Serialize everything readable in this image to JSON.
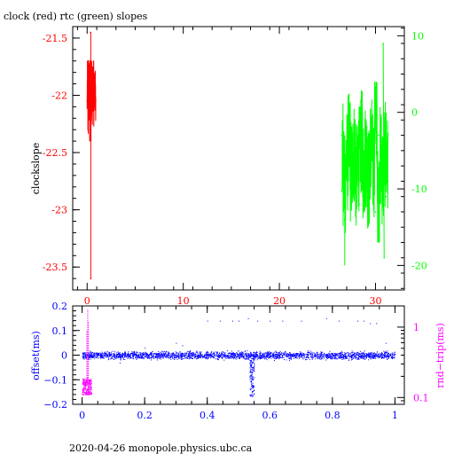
{
  "title": "clock (red) rtc (green) slopes",
  "footer": "2020-04-26  monopole.physics.ubc.ca",
  "colors": {
    "axes": "#000000",
    "clock": "#ff0000",
    "rtc": "#00ff00",
    "offset": "#0000ff",
    "rndtrip": "#ff00ff"
  },
  "chart_data": [
    {
      "type": "line",
      "title": "clock (red) rtc (green) slopes",
      "ylabel": "clockslope",
      "xlim": [
        -1.5,
        33
      ],
      "x_ticks": [
        0,
        10,
        20,
        30
      ],
      "x_tick_labels": [
        "0",
        "10",
        "20",
        "30"
      ],
      "ylim": [
        -23.7,
        -21.4
      ],
      "y_ticks": [
        -21.5,
        -22,
        -22.5,
        -23,
        -23.5
      ],
      "y_tick_labels": [
        "-21.5",
        "-22",
        "-22.5",
        "-23",
        "-23.5"
      ],
      "y2lim": [
        -23.2,
        11.2
      ],
      "y2_ticks": [
        10,
        0,
        -10,
        -20
      ],
      "y2_tick_labels": [
        "10",
        "0",
        "-10",
        "-20"
      ],
      "grid": false,
      "series": [
        {
          "name": "clock",
          "axis": "left",
          "x_range": [
            0.0,
            0.9
          ],
          "points": [
            [
              0.0,
              -22.05
            ],
            [
              0.05,
              -21.75
            ],
            [
              0.1,
              -22.2
            ],
            [
              0.15,
              -21.7
            ],
            [
              0.2,
              -22.1
            ],
            [
              0.25,
              -21.85
            ],
            [
              0.3,
              -22.3
            ],
            [
              0.35,
              -21.45
            ],
            [
              0.38,
              -23.6
            ],
            [
              0.42,
              -22.0
            ],
            [
              0.46,
              -21.8
            ],
            [
              0.5,
              -22.15
            ],
            [
              0.55,
              -21.9
            ],
            [
              0.6,
              -22.05
            ],
            [
              0.65,
              -21.8
            ],
            [
              0.7,
              -22.1
            ],
            [
              0.75,
              -21.95
            ],
            [
              0.8,
              -22.0
            ],
            [
              0.85,
              -21.9
            ],
            [
              0.9,
              -22.05
            ]
          ]
        },
        {
          "name": "rtc",
          "axis": "right",
          "x_range": [
            26.5,
            31.3
          ],
          "points": [
            [
              26.5,
              -3.0
            ],
            [
              26.8,
              -14.0
            ],
            [
              27.0,
              -7.0
            ],
            [
              27.3,
              -2.0
            ],
            [
              27.6,
              -10.0
            ],
            [
              28.0,
              -4.0
            ],
            [
              28.3,
              -12.0
            ],
            [
              28.6,
              -6.0
            ],
            [
              29.0,
              -1.0
            ],
            [
              29.3,
              -9.0
            ],
            [
              29.6,
              -5.0
            ],
            [
              30.0,
              -13.0
            ],
            [
              30.3,
              -3.0
            ],
            [
              30.6,
              -8.0
            ],
            [
              30.8,
              9.0
            ],
            [
              30.9,
              -19.0
            ],
            [
              31.0,
              -6.0
            ],
            [
              31.1,
              -11.0
            ],
            [
              31.2,
              -5.0
            ],
            [
              31.3,
              -9.0
            ]
          ]
        }
      ]
    },
    {
      "type": "scatter",
      "ylabel": "offset(ms)",
      "y2label": "rnd−trip(ms)",
      "xlim": [
        -0.03,
        1.03
      ],
      "x_ticks": [
        0,
        0.2,
        0.4,
        0.6,
        0.8,
        1
      ],
      "x_tick_labels": [
        "0",
        "0.2",
        "0.4",
        "0.6",
        "0.8",
        "1"
      ],
      "ylim": [
        -0.2,
        0.2
      ],
      "y_ticks": [
        0.2,
        0.1,
        0,
        -0.1,
        -0.2
      ],
      "y_tick_labels": [
        "0.2",
        "0.1",
        "0",
        "−0.1",
        "−0.2"
      ],
      "y2_scale": "log",
      "y2lim": [
        0.08,
        2.0
      ],
      "y2_ticks": [
        1,
        0.1
      ],
      "y2_tick_labels": [
        "1",
        "0.1"
      ],
      "grid": false,
      "series": [
        {
          "name": "offset",
          "axis": "left",
          "baseline": 0.0,
          "x_range": [
            0.0,
            1.0
          ],
          "spread": 0.015,
          "outliers": [
            [
              0.3,
              0.05
            ],
            [
              0.32,
              0.04
            ],
            [
              0.4,
              0.14
            ],
            [
              0.44,
              0.14
            ],
            [
              0.48,
              0.14
            ],
            [
              0.5,
              0.14
            ],
            [
              0.53,
              0.15
            ],
            [
              0.56,
              0.14
            ],
            [
              0.6,
              0.14
            ],
            [
              0.64,
              0.14
            ],
            [
              0.7,
              0.14
            ],
            [
              0.78,
              0.15
            ],
            [
              0.82,
              0.14
            ],
            [
              0.88,
              0.14
            ],
            [
              0.9,
              0.14
            ],
            [
              0.92,
              0.13
            ],
            [
              0.94,
              0.13
            ],
            [
              0.97,
              0.05
            ],
            [
              0.12,
              -0.03
            ],
            [
              0.2,
              0.03
            ]
          ],
          "dip": {
            "x_range": [
              0.535,
              0.55
            ],
            "y_range": [
              -0.2,
              -0.01
            ]
          }
        },
        {
          "name": "rnd-trip",
          "axis": "right",
          "x_range": [
            0.0,
            0.03
          ],
          "core_range": [
            0.11,
            0.19
          ],
          "spikes": [
            [
              0.018,
              1.8
            ],
            [
              0.02,
              1.2
            ],
            [
              0.015,
              0.9
            ]
          ]
        }
      ]
    }
  ]
}
